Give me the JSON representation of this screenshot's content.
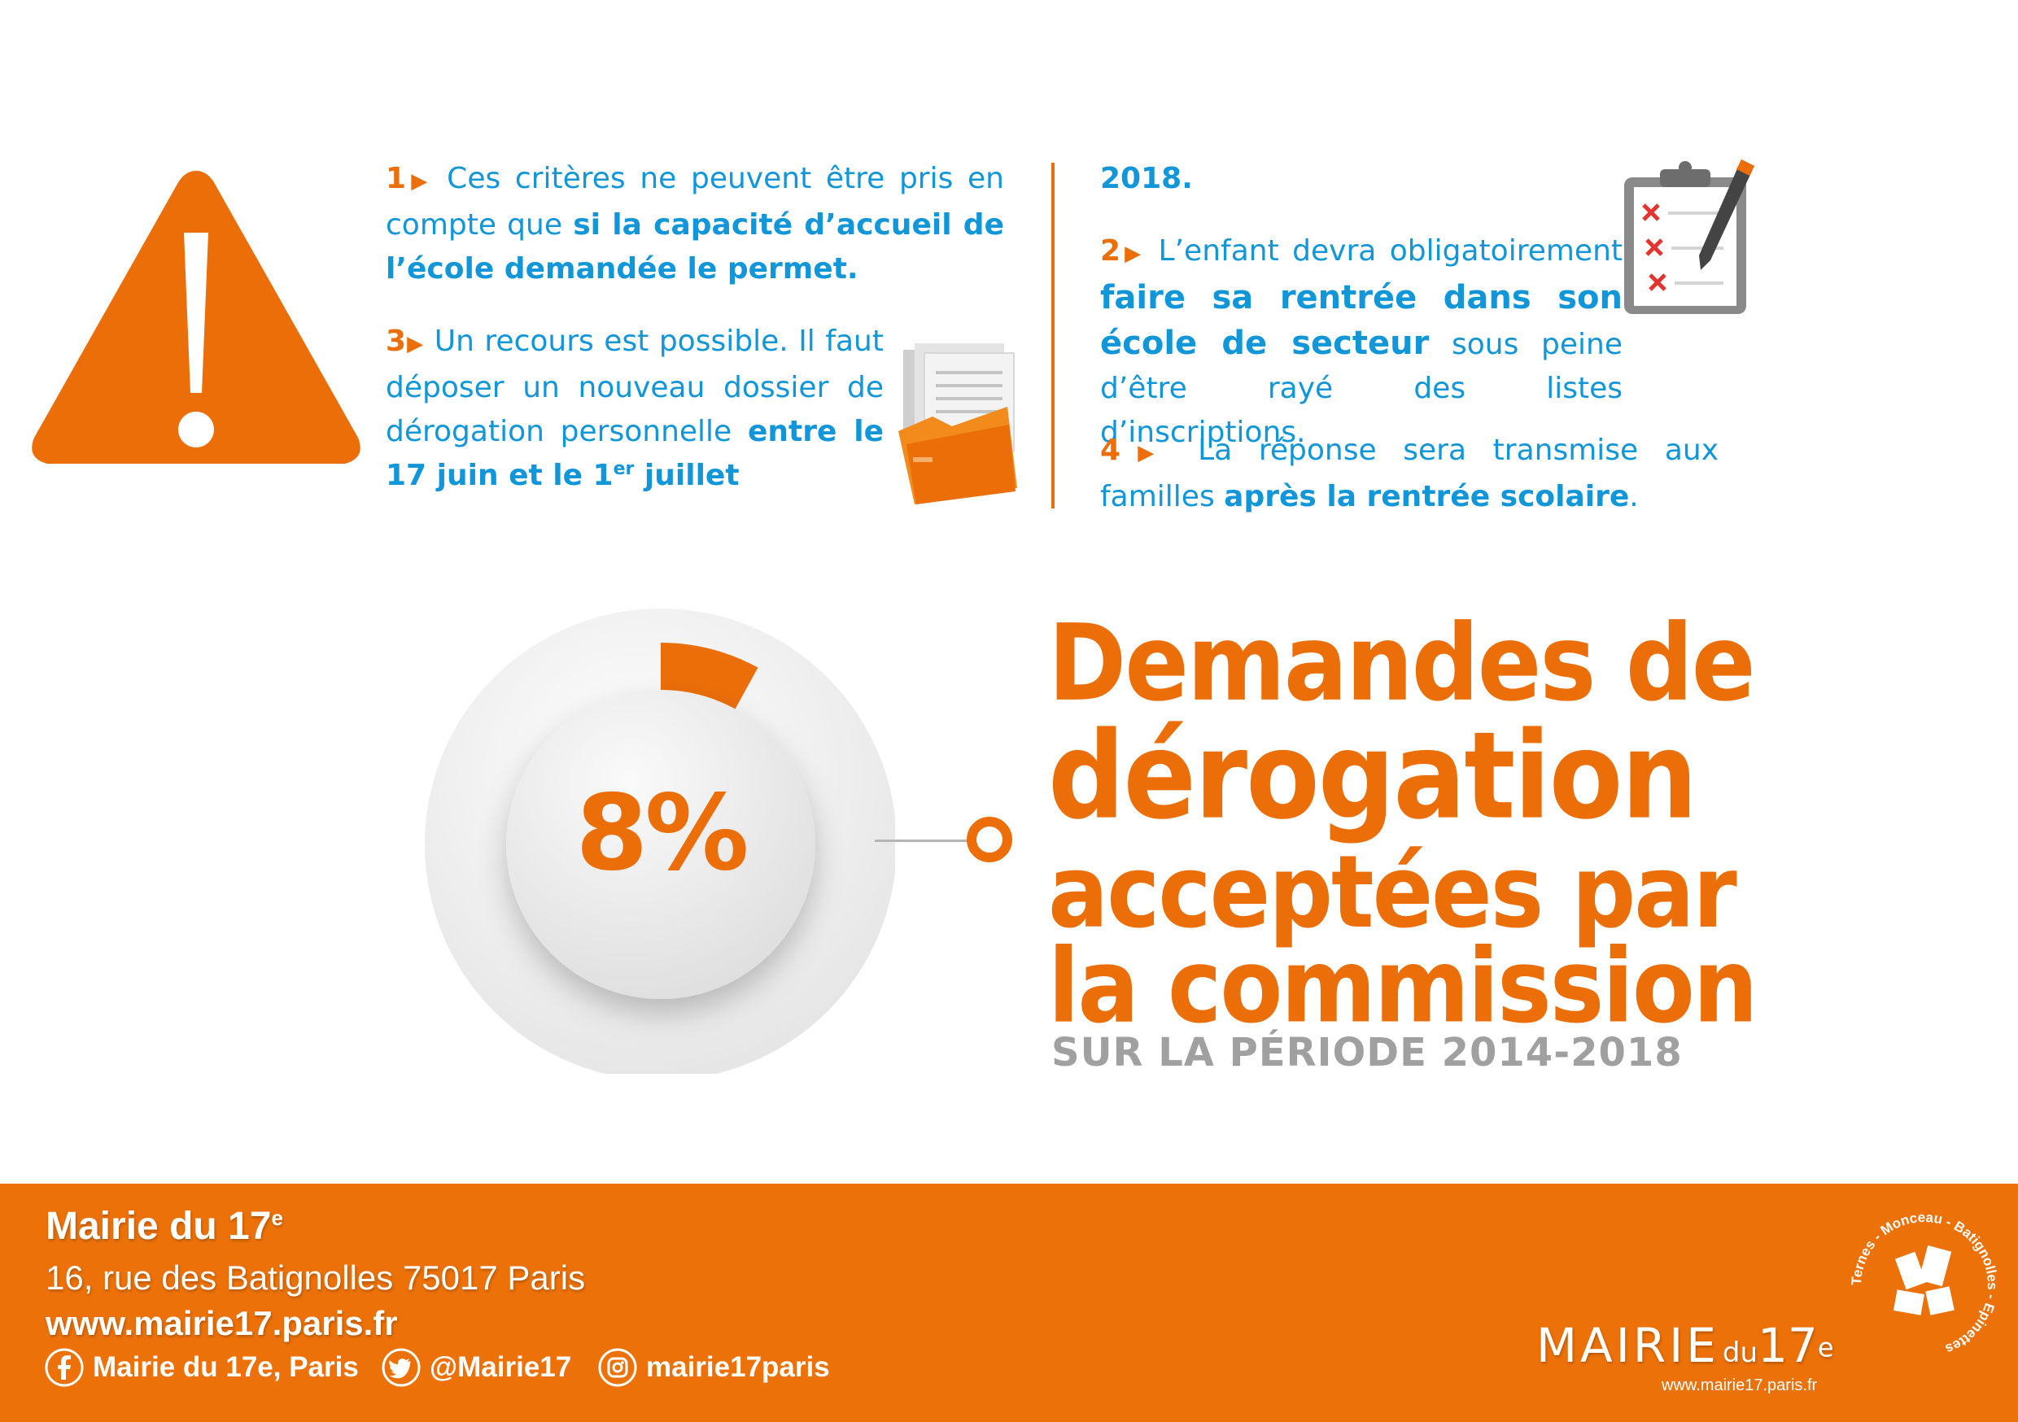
{
  "points": {
    "p1": {
      "num": "1",
      "text_a": " Ces critères ne peuvent être pris en compte que ",
      "bold": "si la capacité d’accueil de l’école demandée le permet."
    },
    "p3": {
      "num": "3",
      "text_a": " Un recours est possible. Il faut déposer un nouveau dossier de dérogation personnelle ",
      "bold_a": "entre le 17 juin et le 1",
      "sup": "er",
      "bold_b": " juillet"
    },
    "p3_cont": "2018.",
    "p2": {
      "num": "2",
      "text_a": " L’enfant devra obligatoirement ",
      "bold": "faire sa rentrée dans son école de secteur",
      "text_b": " sous peine d’être rayé des listes d’inscriptions."
    },
    "p4": {
      "num": "4",
      "text_a": " La réponse sera transmise aux familles ",
      "bold": "après la rentrée scolaire",
      "text_b": "."
    },
    "arrow": "▶"
  },
  "stat": {
    "value": "8%",
    "percent": 8,
    "title_lines": [
      "Demandes de",
      "dérogation",
      "acceptées par",
      "la commission"
    ],
    "subtitle": "SUR LA PÉRIODE 2014-2018"
  },
  "footer": {
    "name": "Mairie du 17",
    "name_sup": "e",
    "address": "16, rue des Batignolles 75017 Paris",
    "website": "www.mairie17.paris.fr",
    "facebook": "Mairie du 17e, Paris",
    "twitter": "@Mairie17",
    "instagram": "mairie17paris",
    "logo": {
      "main": "MAIRIE",
      "du": "du",
      "num": "17",
      "sup": "e",
      "url": "www.mairie17.paris.fr",
      "ring": "Ternes - Monceau - Batignolles - Epinettes"
    }
  },
  "colors": {
    "orange": "#ec6e09",
    "blue": "#1196d9",
    "grey": "#a0a0a0",
    "footer": "#ec7108"
  },
  "icons": [
    "warning-icon",
    "documents-folder-icon",
    "clipboard-checklist-icon",
    "facebook-icon",
    "twitter-icon",
    "instagram-icon"
  ]
}
